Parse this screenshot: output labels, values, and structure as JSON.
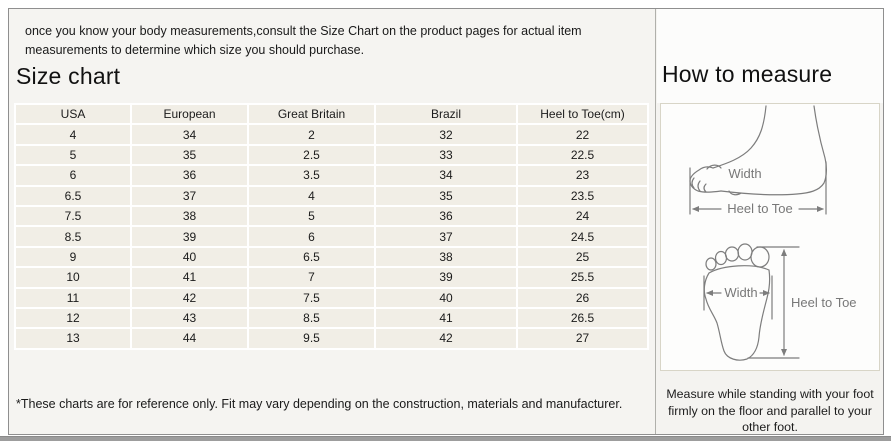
{
  "page": {
    "intro_text": "once you know your body measurements,consult the Size Chart on the product pages for actual item measurements to determine which size you should purchase.",
    "footnote": "*These charts are for reference only. Fit may vary depending on the construction, materials and manufacturer."
  },
  "size_chart": {
    "title": "Size chart",
    "table": {
      "headers": [
        "USA",
        "European",
        "Great Britain",
        "Brazil",
        "Heel to Toe(cm)"
      ],
      "rows": [
        [
          "4",
          "34",
          "2",
          "32",
          "22"
        ],
        [
          "5",
          "35",
          "2.5",
          "33",
          "22.5"
        ],
        [
          "6",
          "36",
          "3.5",
          "34",
          "23"
        ],
        [
          "6.5",
          "37",
          "4",
          "35",
          "23.5"
        ],
        [
          "7.5",
          "38",
          "5",
          "36",
          "24"
        ],
        [
          "8.5",
          "39",
          "6",
          "37",
          "24.5"
        ],
        [
          "9",
          "40",
          "6.5",
          "38",
          "25"
        ],
        [
          "10",
          "41",
          "7",
          "39",
          "25.5"
        ],
        [
          "11",
          "42",
          "7.5",
          "40",
          "26"
        ],
        [
          "12",
          "43",
          "8.5",
          "41",
          "26.5"
        ],
        [
          "13",
          "44",
          "9.5",
          "42",
          "27"
        ]
      ]
    }
  },
  "how_to_measure": {
    "title": "How to measure",
    "side_view": {
      "width_label": "Width",
      "heel_to_toe_label": "Heel to Toe"
    },
    "top_view": {
      "width_label": "Width",
      "heel_to_toe_label": "Heel to Toe"
    },
    "instruction": "Measure while standing with your foot firmly on the floor and parallel to your other foot."
  },
  "colors": {
    "table_cell_bg": "#f1eee6",
    "table_grid_line": "#ffffff",
    "frame_border": "#8f8f8f",
    "panel_bg": "#f5f4f1",
    "diagram_stroke": "#7d7d7d",
    "bottom_bar": "#9d9d9d"
  }
}
